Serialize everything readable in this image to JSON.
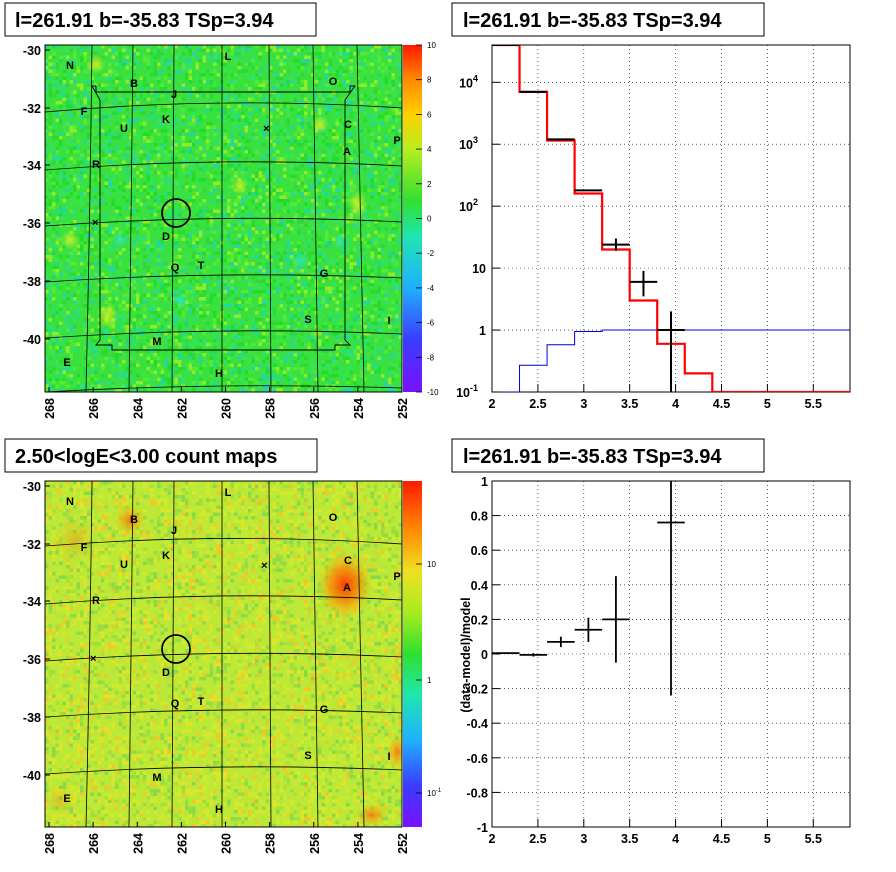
{
  "panels": {
    "p1_title": "l=261.91 b=-35.83 TSp=3.94",
    "p2_title": "l=261.91 b=-35.83 TSp=3.94",
    "p3_title": "2.50<logE<3.00 count maps",
    "p4_title": "l=261.91 b=-35.83 TSp=3.94"
  },
  "source_labels": [
    "N",
    "L",
    "O",
    "B",
    "J",
    "F",
    "K",
    "C",
    "U",
    "A",
    "P",
    "R",
    "D",
    "Q",
    "T",
    "G",
    "S",
    "I",
    "M",
    "E",
    "H"
  ],
  "map_axes": {
    "x_ticks": [
      "268",
      "266",
      "264",
      "262",
      "260",
      "258",
      "256",
      "254",
      "252"
    ],
    "y_ticks": [
      "-30",
      "-32",
      "-34",
      "-36",
      "-38",
      "-40"
    ]
  },
  "colorbar_residual": {
    "ticks": [
      "10",
      "8",
      "6",
      "4",
      "2",
      "0",
      "-2",
      "-4",
      "-6",
      "-8",
      "-10"
    ]
  },
  "colorbar_counts": {
    "ticks": [
      "10",
      "1",
      "10"
    ],
    "tick_sup": [
      "",
      "",
      "-1"
    ]
  },
  "chart_data": [
    {
      "type": "heatmap",
      "title": "l=261.91 b=-35.83 TSp=3.94",
      "x_range": [
        268.5,
        252
      ],
      "y_range": [
        -41.8,
        -29.8
      ],
      "z_range": [
        -10,
        10
      ],
      "colorscale": "residual",
      "colors": {
        "low": "#6a1cff",
        "mid": "#22e022",
        "high": "#ff2a00"
      }
    },
    {
      "type": "line",
      "title": "l=261.91 b=-35.83 TSp=3.94",
      "y_scale": "log",
      "xlim": [
        2,
        5.9
      ],
      "ylim": [
        0.1,
        40000
      ],
      "x_ticks": [
        "2",
        "2.5",
        "3",
        "3.5",
        "4",
        "4.5",
        "5",
        "5.5"
      ],
      "y_ticks": [
        "10",
        "1",
        "10",
        "10",
        "10",
        "1",
        "10"
      ],
      "y_tick_sup": [
        "-1",
        "",
        "",
        "2",
        "3",
        "",
        "4"
      ],
      "y_tick_values": [
        0.1,
        1,
        10,
        100,
        1000,
        10000
      ],
      "bin_edges": [
        2,
        2.3,
        2.6,
        2.9,
        3.2,
        3.5,
        3.8,
        4.1,
        4.4,
        4.7,
        5.0,
        5.3,
        5.6,
        5.9
      ],
      "series": [
        {
          "values": [
            40000,
            7000,
            1150,
            160,
            20,
            3,
            0.6,
            0.2,
            0.1,
            0.1,
            0.1,
            0.1,
            0.1
          ],
          "color": "#ff0000"
        },
        {
          "values": [
            0.1,
            0.27,
            0.58,
            0.95,
            1.0,
            1.0,
            1.0,
            1.0,
            1.0,
            1.0,
            1.0,
            1.0,
            1.0
          ],
          "color": "#0000dd"
        }
      ],
      "data_points": [
        {
          "x": 2.15,
          "y": 40000
        },
        {
          "x": 2.45,
          "y": 7000
        },
        {
          "x": 2.75,
          "y": 1200
        },
        {
          "x": 3.05,
          "y": 180
        },
        {
          "x": 3.35,
          "y": 24,
          "yerr_lo": 19,
          "yerr_hi": 30
        },
        {
          "x": 3.65,
          "y": 6,
          "yerr_lo": 3.5,
          "yerr_hi": 9
        },
        {
          "x": 3.95,
          "y": 1.0,
          "yerr_lo": 0.1,
          "yerr_hi": 2.0
        }
      ],
      "grid": true
    },
    {
      "type": "heatmap",
      "title": "2.50<logE<3.00 count maps",
      "x_range": [
        268.5,
        252
      ],
      "y_range": [
        -41.8,
        -29.8
      ],
      "z_scale": "log",
      "z_range": [
        0.05,
        30
      ],
      "colorscale": "counts"
    },
    {
      "type": "scatter",
      "title": "l=261.91 b=-35.83 TSp=3.94",
      "ylabel": "(data-model)/model",
      "xlim": [
        2,
        5.9
      ],
      "ylim": [
        -1,
        1
      ],
      "x_ticks": [
        "2",
        "2.5",
        "3",
        "3.5",
        "4",
        "4.5",
        "5",
        "5.5"
      ],
      "y_ticks": [
        "1",
        "0.8",
        "0.6",
        "0.4",
        "0.2",
        "0",
        "-0.2",
        "-0.4",
        "-0.6",
        "-0.8",
        "-1"
      ],
      "points": [
        {
          "x": 2.15,
          "y": 0.005,
          "xerr": 0.15,
          "yerr": 0.004
        },
        {
          "x": 2.45,
          "y": -0.005,
          "xerr": 0.15,
          "yerr": 0.01
        },
        {
          "x": 2.75,
          "y": 0.07,
          "xerr": 0.15,
          "yerr": 0.03
        },
        {
          "x": 3.05,
          "y": 0.14,
          "xerr": 0.15,
          "yerr": 0.07
        },
        {
          "x": 3.35,
          "y": 0.2,
          "xerr": 0.15,
          "yerr": 0.25
        },
        {
          "x": 3.95,
          "y": 0.76,
          "xerr": 0.15,
          "yerr": 1.0
        }
      ],
      "grid": true
    }
  ]
}
